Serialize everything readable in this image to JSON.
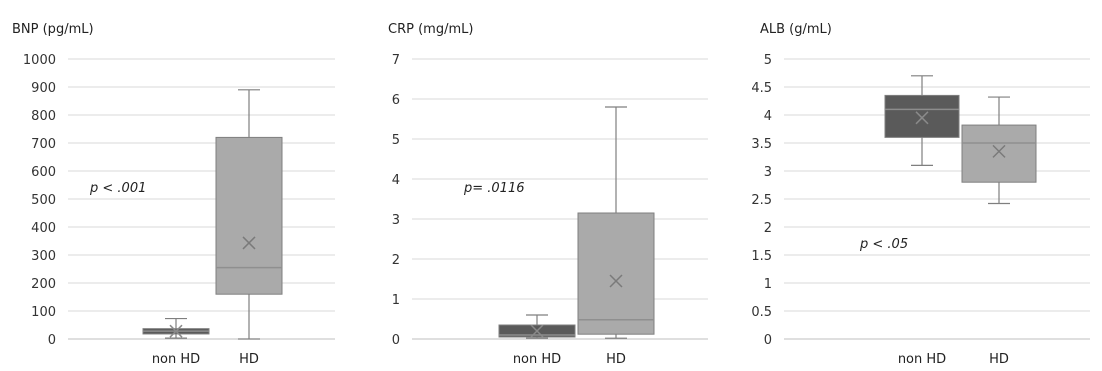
{
  "chart_data": [
    {
      "type": "box",
      "title": "BNP (pg/mL)",
      "ylim": [
        0,
        1000
      ],
      "ticks": [
        0,
        100,
        200,
        300,
        400,
        500,
        600,
        700,
        800,
        900,
        1000
      ],
      "tick_labels": [
        "0",
        "100",
        "200",
        "300",
        "400",
        "500",
        "600",
        "700",
        "800",
        "900",
        "1000"
      ],
      "grid": true,
      "categories": [
        "non HD",
        "HD"
      ],
      "boxes": [
        {
          "category": "non HD",
          "min": 3,
          "q1": 18,
          "median": 28,
          "q3": 37,
          "max": 73,
          "mean": 28,
          "color": "#5a5a5a"
        },
        {
          "category": "HD",
          "min": 0,
          "q1": 160,
          "median": 255,
          "q3": 720,
          "max": 890,
          "mean": 343,
          "color": "#aaaaaa"
        }
      ],
      "annotation": "p < .001"
    },
    {
      "type": "box",
      "title": "CRP (mg/mL)",
      "ylim": [
        0,
        7
      ],
      "ticks": [
        0,
        1,
        2,
        3,
        4,
        5,
        6,
        7
      ],
      "tick_labels": [
        "0",
        "1",
        "2",
        "3",
        "4",
        "5",
        "6",
        "7"
      ],
      "grid": true,
      "categories": [
        "non HD",
        "HD"
      ],
      "boxes": [
        {
          "category": "non HD",
          "min": 0.02,
          "q1": 0.05,
          "median": 0.1,
          "q3": 0.35,
          "max": 0.6,
          "mean": 0.2,
          "color": "#5a5a5a"
        },
        {
          "category": "HD",
          "min": 0.02,
          "q1": 0.12,
          "median": 0.48,
          "q3": 3.15,
          "max": 5.8,
          "mean": 1.45,
          "color": "#aaaaaa"
        }
      ],
      "annotation": "p= .0116"
    },
    {
      "type": "box",
      "title": "ALB (g/mL)",
      "ylim": [
        0,
        5
      ],
      "ticks": [
        0,
        0.5,
        1,
        1.5,
        2,
        2.5,
        3,
        3.5,
        4,
        4.5,
        5
      ],
      "tick_labels": [
        "0",
        "0.5",
        "1",
        "1.5",
        "2",
        "2.5",
        "3",
        "3.5",
        "4",
        "4.5",
        "5"
      ],
      "grid": true,
      "categories": [
        "non HD",
        "HD"
      ],
      "boxes": [
        {
          "category": "non HD",
          "min": 3.1,
          "q1": 3.6,
          "median": 4.1,
          "q3": 4.35,
          "max": 4.7,
          "mean": 3.95,
          "color": "#5a5a5a"
        },
        {
          "category": "HD",
          "min": 2.42,
          "q1": 2.8,
          "median": 3.5,
          "q3": 3.82,
          "max": 4.32,
          "mean": 3.35,
          "color": "#aaaaaa"
        }
      ],
      "annotation": "p < .05"
    }
  ]
}
